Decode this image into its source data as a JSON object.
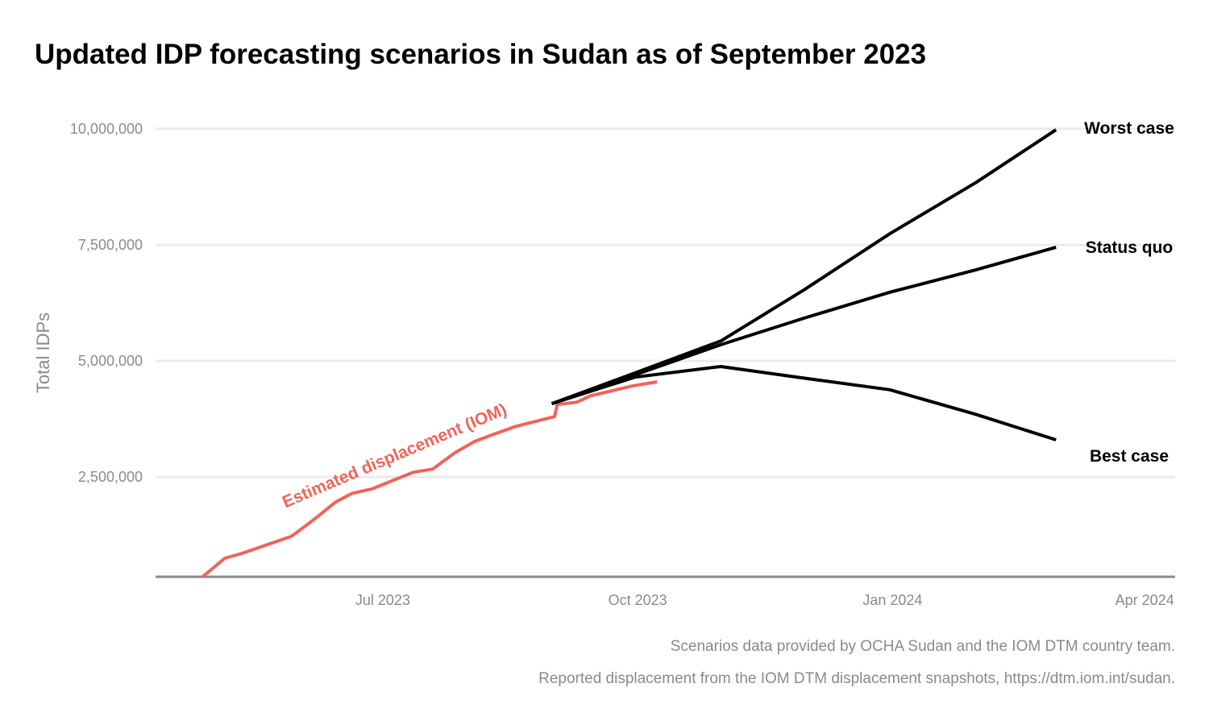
{
  "chart_data": {
    "type": "line",
    "title": "Updated IDP forecasting scenarios in Sudan as of September 2023",
    "xlabel": "",
    "ylabel": "Total IDPs",
    "xlim": [
      "2023-04-10",
      "2024-04-12"
    ],
    "ylim": [
      350000,
      10200000
    ],
    "grid": "horizontal",
    "x_ticks": [
      {
        "date": "2023-07-01",
        "label": "Jul 2023"
      },
      {
        "date": "2023-10-01",
        "label": "Oct 2023"
      },
      {
        "date": "2024-01-01",
        "label": "Jan 2024"
      },
      {
        "date": "2024-04-01",
        "label": "Apr 2024"
      }
    ],
    "y_ticks": [
      {
        "value": 2500000,
        "label": "2,500,000"
      },
      {
        "value": 5000000,
        "label": "5,000,000"
      },
      {
        "value": 7500000,
        "label": "7,500,000"
      },
      {
        "value": 10000000,
        "label": "10,000,000"
      }
    ],
    "reported": {
      "name": "Estimated displacement (IOM)",
      "color": "#f0635a",
      "x": [
        "2023-04-27",
        "2023-05-05",
        "2023-05-11",
        "2023-05-29",
        "2023-06-03",
        "2023-06-08",
        "2023-06-14",
        "2023-06-20",
        "2023-06-27",
        "2023-07-04",
        "2023-07-12",
        "2023-07-19",
        "2023-07-27",
        "2023-08-03",
        "2023-08-10",
        "2023-08-18",
        "2023-09-01",
        "2023-09-02",
        "2023-09-09",
        "2023-09-14",
        "2023-09-22",
        "2023-09-29",
        "2023-10-08"
      ],
      "y": [
        350000,
        750000,
        850000,
        1220000,
        1440000,
        1670000,
        1960000,
        2150000,
        2240000,
        2410000,
        2600000,
        2670000,
        3020000,
        3260000,
        3420000,
        3590000,
        3800000,
        4060000,
        4110000,
        4250000,
        4360000,
        4460000,
        4550000
      ]
    },
    "series": [
      {
        "name": "Worst case",
        "color": "#000000",
        "x": [
          "2023-08-31",
          "2023-09-30",
          "2023-10-31",
          "2023-11-30",
          "2023-12-31",
          "2024-01-31",
          "2024-02-29"
        ],
        "y": [
          4080000,
          4740000,
          5430000,
          6530000,
          7740000,
          8840000,
          9980000
        ]
      },
      {
        "name": "Status quo",
        "color": "#000000",
        "x": [
          "2023-08-31",
          "2023-09-30",
          "2023-10-31",
          "2023-11-30",
          "2023-12-31",
          "2024-01-31",
          "2024-02-29"
        ],
        "y": [
          4080000,
          4700000,
          5350000,
          5920000,
          6480000,
          6960000,
          7450000
        ]
      },
      {
        "name": "Best case",
        "color": "#000000",
        "x": [
          "2023-08-31",
          "2023-09-30",
          "2023-10-31",
          "2023-11-30",
          "2023-12-31",
          "2024-01-31",
          "2024-02-29"
        ],
        "y": [
          4080000,
          4650000,
          4880000,
          4630000,
          4380000,
          3850000,
          3300000
        ]
      }
    ],
    "captions": [
      "Scenarios data provided by OCHA Sudan and the IOM DTM country team.",
      "Reported displacement from the IOM DTM displacement snapshots, https://dtm.iom.int/sudan."
    ]
  }
}
